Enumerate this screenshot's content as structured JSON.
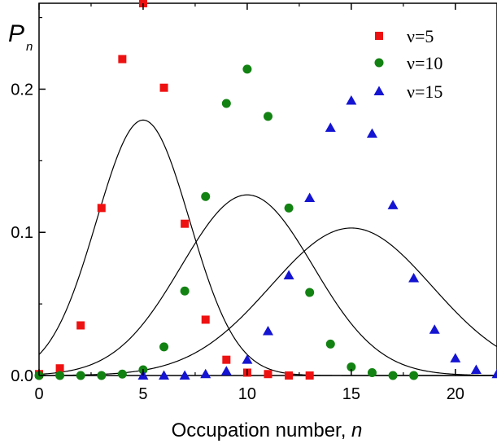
{
  "chart_data": {
    "type": "scatter",
    "title": "",
    "xlabel": "Occupation number, ",
    "xlabel_var": "n",
    "ylabel": "P",
    "ylabel_sub": "n",
    "xlim": [
      0,
      22
    ],
    "ylim": [
      0,
      0.26
    ],
    "xticks": [
      0,
      5,
      10,
      15,
      20
    ],
    "xtick_labels": [
      "0",
      "5",
      "10",
      "15",
      "20"
    ],
    "yticks": [
      0.0,
      0.1,
      0.2
    ],
    "ytick_labels": [
      "0.0",
      "0.1",
      "0.2"
    ],
    "grid": false,
    "legend_position": "top-right",
    "fit_curves": "solid black line through each series",
    "series": [
      {
        "name": "ν=5",
        "marker": "square",
        "color": "#ee1111",
        "x": [
          0,
          1,
          2,
          3,
          4,
          5,
          6,
          7,
          8,
          9,
          10,
          11,
          12,
          13
        ],
        "y": [
          0.001,
          0.005,
          0.035,
          0.117,
          0.221,
          0.26,
          0.201,
          0.106,
          0.039,
          0.011,
          0.002,
          0.001,
          0.0,
          0.0
        ]
      },
      {
        "name": "ν=10",
        "marker": "circle",
        "color": "#128212",
        "x": [
          0,
          1,
          2,
          3,
          4,
          5,
          6,
          7,
          8,
          9,
          10,
          11,
          12,
          13,
          14,
          15,
          16,
          17,
          18
        ],
        "y": [
          0.0,
          0.0,
          0.0,
          0.0,
          0.001,
          0.004,
          0.02,
          0.059,
          0.125,
          0.19,
          0.214,
          0.181,
          0.117,
          0.058,
          0.022,
          0.006,
          0.002,
          0.0,
          0.0
        ]
      },
      {
        "name": "ν=15",
        "marker": "triangle",
        "color": "#1414d2",
        "x": [
          5,
          6,
          7,
          8,
          9,
          10,
          11,
          12,
          13,
          14,
          15,
          16,
          17,
          18,
          19,
          20,
          21,
          22
        ],
        "y": [
          0.0,
          0.0,
          0.0,
          0.001,
          0.003,
          0.011,
          0.031,
          0.07,
          0.124,
          0.173,
          0.192,
          0.169,
          0.119,
          0.068,
          0.032,
          0.012,
          0.004,
          0.001
        ]
      }
    ]
  }
}
